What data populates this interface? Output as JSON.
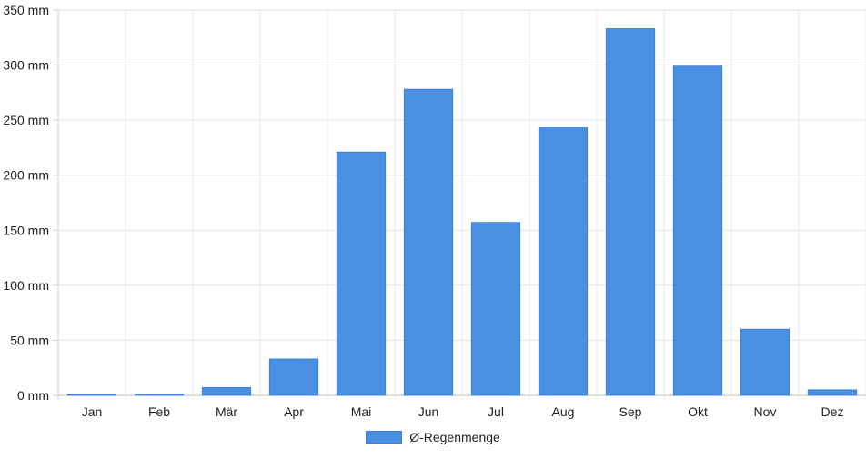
{
  "chart_data": {
    "type": "bar",
    "categories": [
      "Jan",
      "Feb",
      "Mär",
      "Apr",
      "Mai",
      "Jun",
      "Jul",
      "Aug",
      "Sep",
      "Okt",
      "Nov",
      "Dez"
    ],
    "series": [
      {
        "name": "Ø-Regenmenge",
        "values": [
          1,
          1,
          7,
          33,
          221,
          278,
          157,
          243,
          333,
          299,
          60,
          5
        ],
        "color": "#4a90e2"
      }
    ],
    "y_ticks": [
      "0 mm",
      "50 mm",
      "100 mm",
      "150 mm",
      "200 mm",
      "250 mm",
      "300 mm",
      "350 mm"
    ],
    "ylim": [
      0,
      350
    ],
    "y_unit": "mm",
    "grid": true,
    "legend_position": "bottom"
  }
}
